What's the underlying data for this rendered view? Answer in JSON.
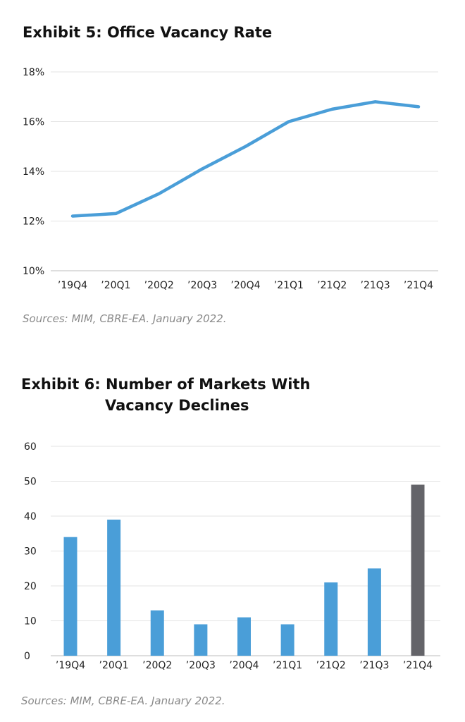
{
  "charts": [
    {
      "title": "Exhibit 5: Office Vacancy Rate",
      "source": "Sources: MIM, CBRE-EA. January 2022."
    },
    {
      "title_line1": "Exhibit 6: Number of Markets With",
      "title_line2": "Vacancy Declines",
      "source": "Sources: MIM, CBRE-EA. January 2022."
    }
  ],
  "chart_data": [
    {
      "type": "line",
      "title": "Exhibit 5: Office Vacancy Rate",
      "categories": [
        "’19Q4",
        "’20Q1",
        "’20Q2",
        "’20Q3",
        "’20Q4",
        "’21Q1",
        "’21Q2",
        "’21Q3",
        "’21Q4"
      ],
      "values": [
        12.2,
        12.3,
        13.1,
        14.1,
        15.0,
        16.0,
        16.5,
        16.8,
        16.6
      ],
      "yticks": [
        "10%",
        "12%",
        "14%",
        "16%",
        "18%"
      ],
      "ylim": [
        10,
        18
      ],
      "grid": true,
      "color": "#4a9ed8"
    },
    {
      "type": "bar",
      "title": "Exhibit 6: Number of Markets With Vacancy Declines",
      "categories": [
        "’19Q4",
        "’20Q1",
        "’20Q2",
        "’20Q3",
        "’20Q4",
        "’21Q1",
        "’21Q2",
        "’21Q3",
        "’21Q4"
      ],
      "values": [
        34,
        39,
        13,
        9,
        11,
        9,
        21,
        25,
        49
      ],
      "yticks": [
        "0",
        "10",
        "20",
        "30",
        "40",
        "50",
        "60"
      ],
      "ylim": [
        0,
        60
      ],
      "grid": true,
      "colors": [
        "#4a9ed8",
        "#4a9ed8",
        "#4a9ed8",
        "#4a9ed8",
        "#4a9ed8",
        "#4a9ed8",
        "#4a9ed8",
        "#4a9ed8",
        "#646469"
      ]
    }
  ]
}
